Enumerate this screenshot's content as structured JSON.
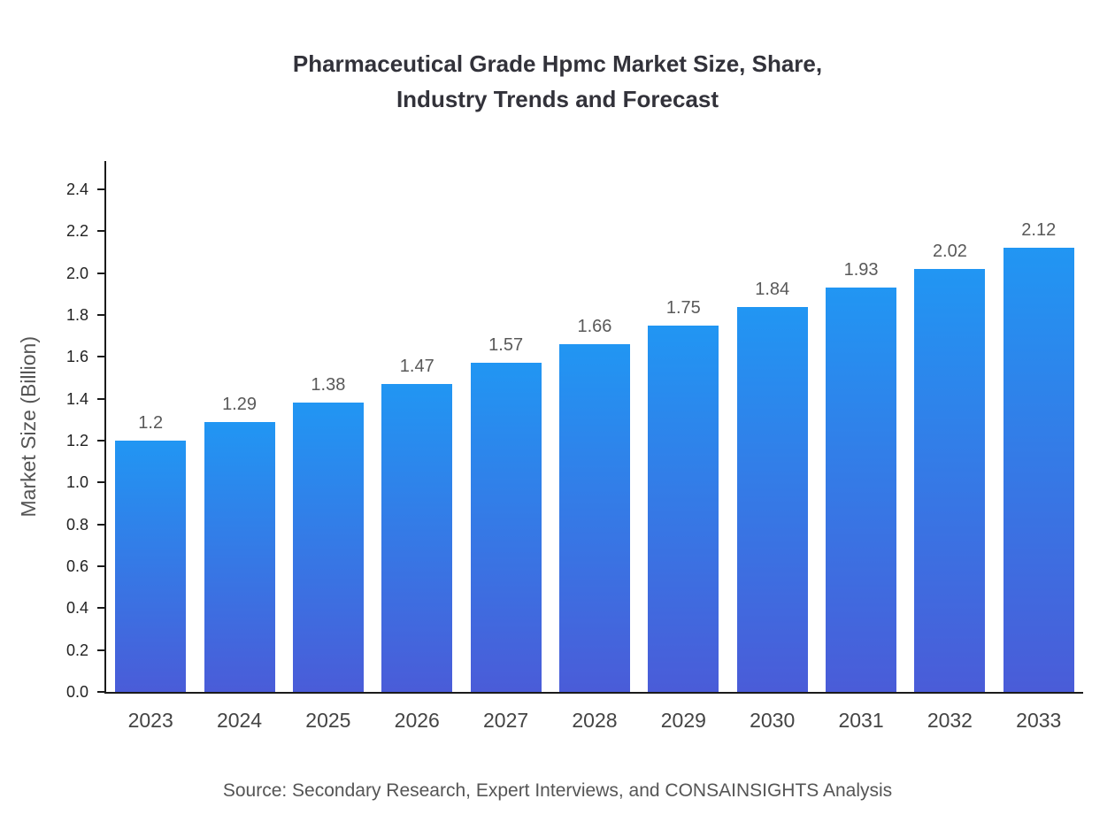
{
  "title": {
    "line1": "Pharmaceutical Grade Hpmc Market Size, Share,",
    "line2": "Industry Trends and Forecast"
  },
  "source": "Source: Secondary Research, Expert Interviews, and CONSAINSIGHTS Analysis",
  "chart_data": {
    "type": "bar",
    "title": "Pharmaceutical Grade Hpmc Market Size, Share, Industry Trends and Forecast",
    "categories": [
      "2023",
      "2024",
      "2025",
      "2026",
      "2027",
      "2028",
      "2029",
      "2030",
      "2031",
      "2032",
      "2033"
    ],
    "values": [
      1.2,
      1.29,
      1.38,
      1.47,
      1.57,
      1.66,
      1.75,
      1.84,
      1.93,
      2.02,
      2.12
    ],
    "value_labels": [
      "1.2",
      "1.29",
      "1.38",
      "1.47",
      "1.57",
      "1.66",
      "1.75",
      "1.84",
      "1.93",
      "2.02",
      "2.12"
    ],
    "xlabel": "",
    "ylabel": "Market Size (Billion)",
    "ylim": [
      0,
      2.5
    ],
    "yticks": [
      0.0,
      0.2,
      0.4,
      0.6,
      0.8,
      1.0,
      1.2,
      1.4,
      1.6,
      1.8,
      2.0,
      2.2,
      2.4
    ],
    "grid": false,
    "legend_position": "none",
    "bar_gradient_top": "#2196f3",
    "bar_gradient_bottom": "#4a5cd8"
  }
}
